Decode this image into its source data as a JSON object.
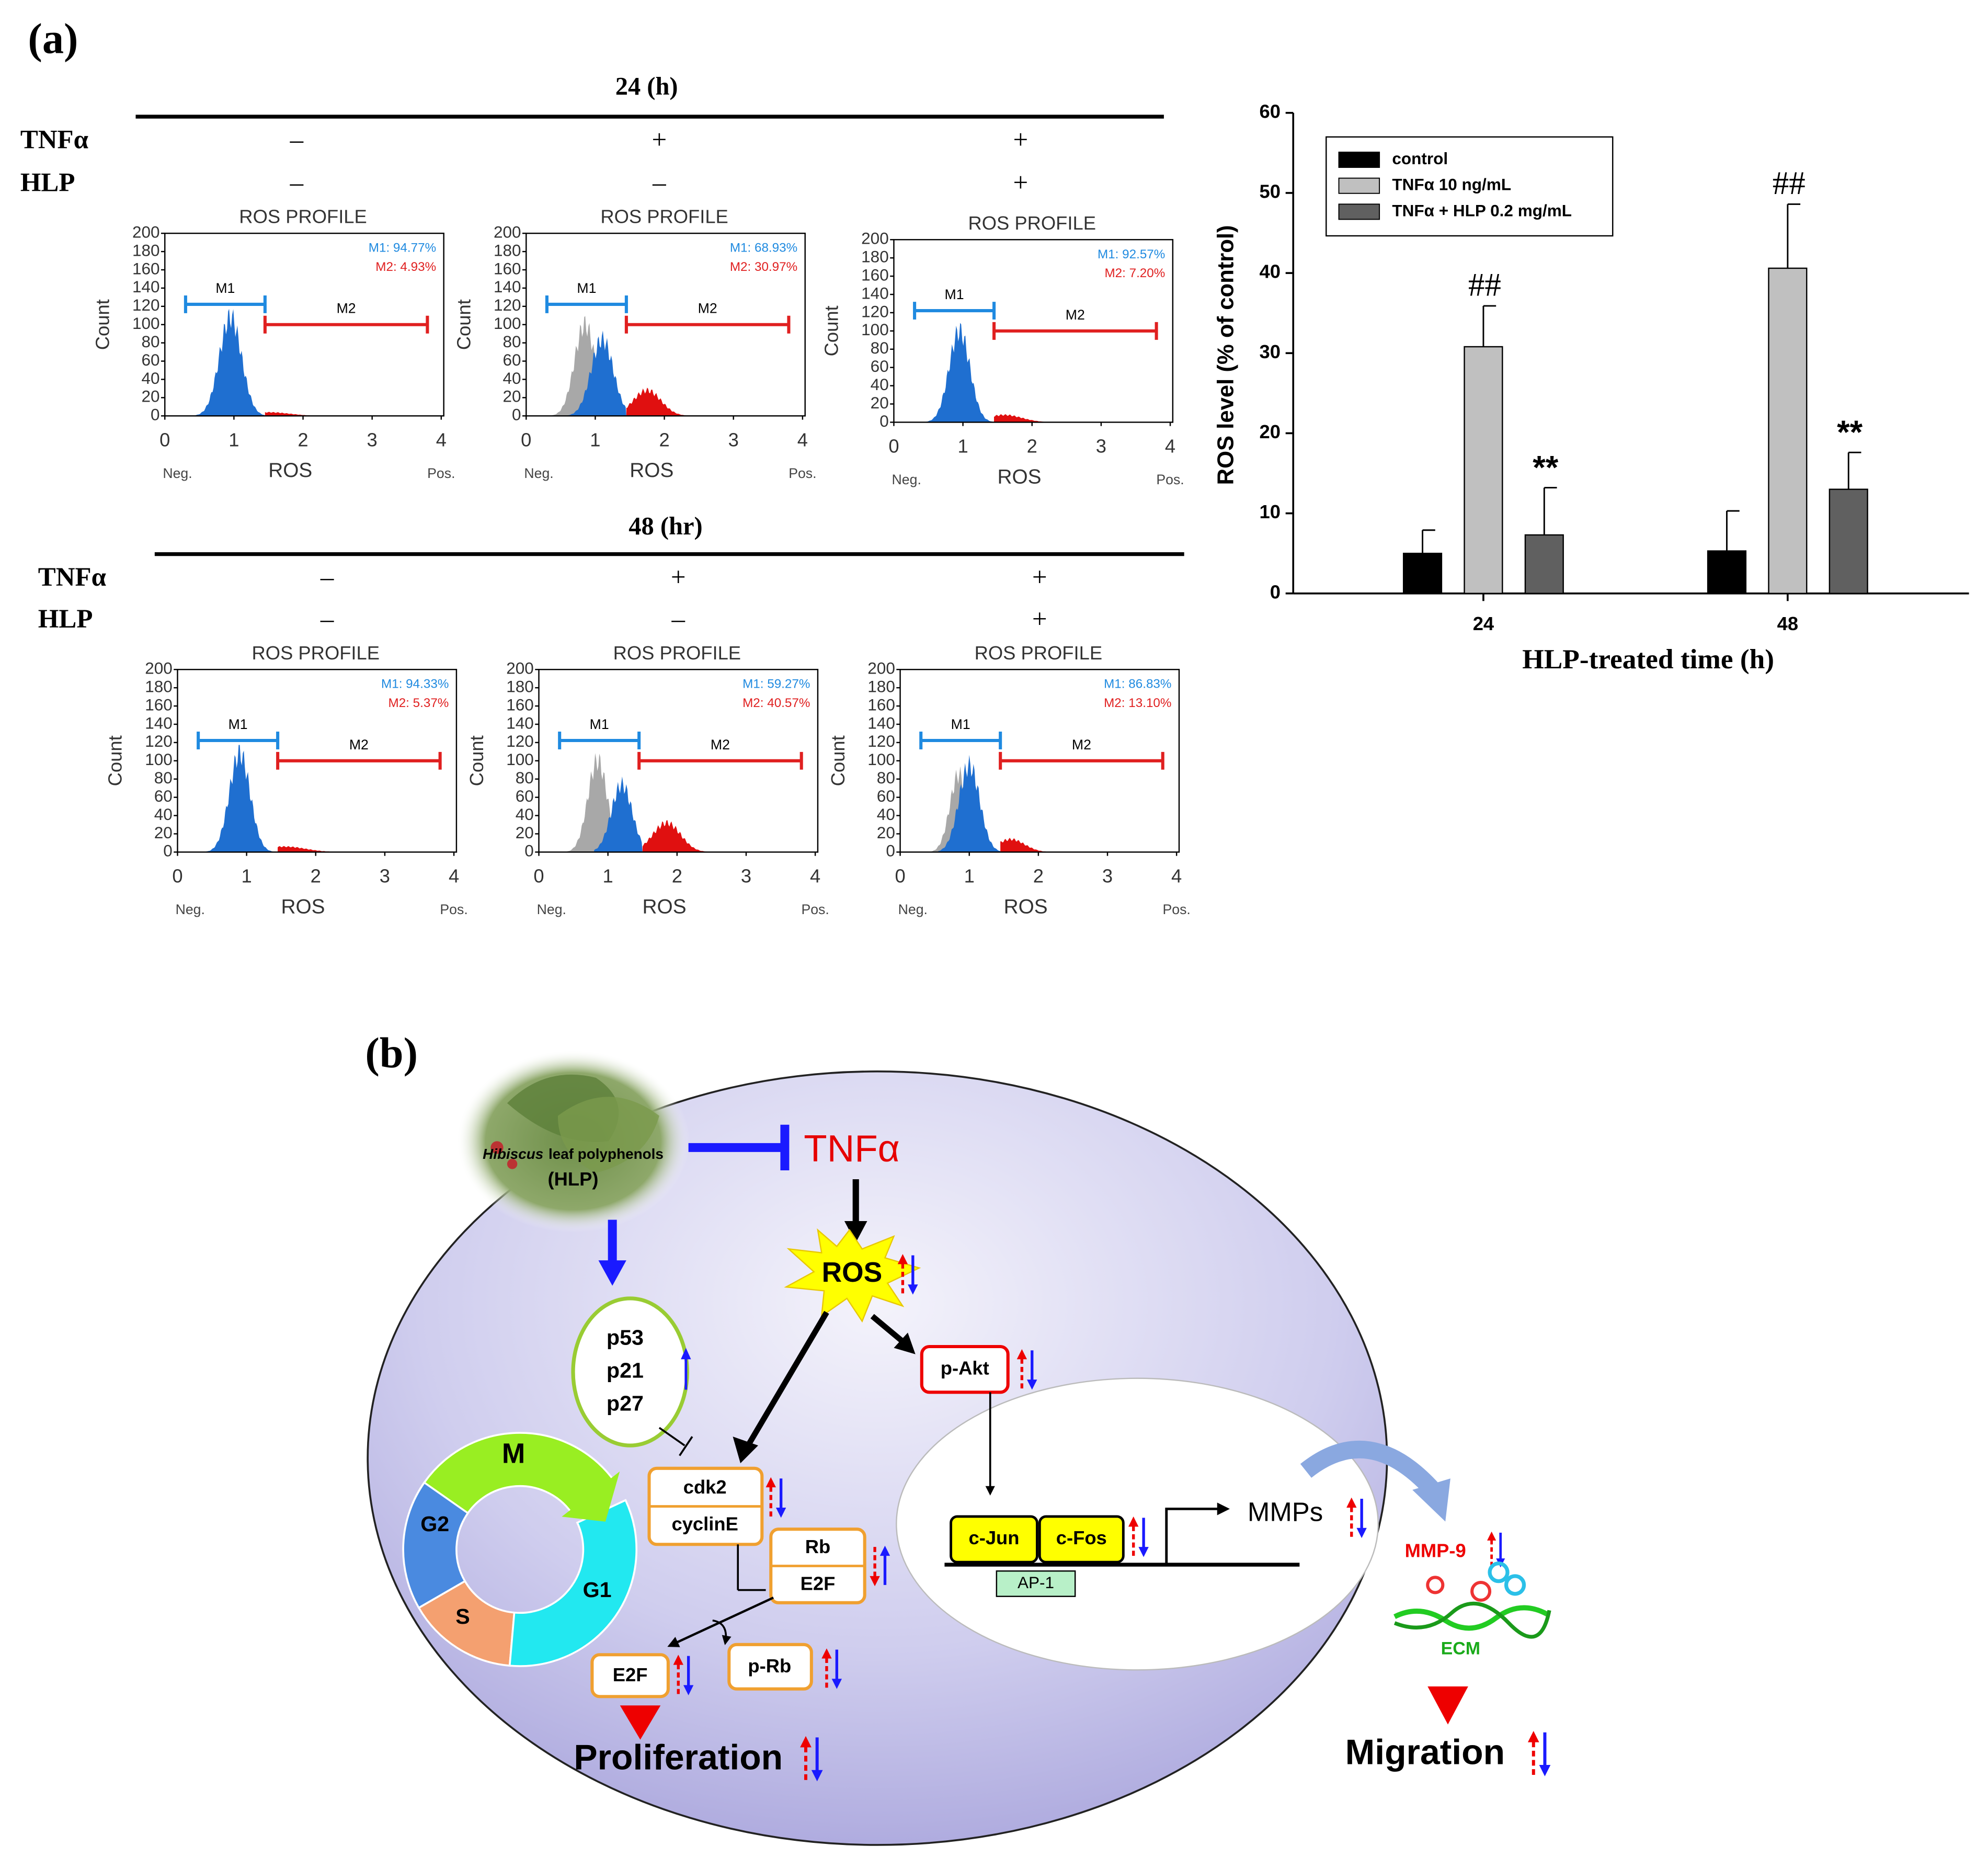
{
  "panel_a": {
    "label": "(a)",
    "groups": [
      {
        "time": "24 (h)",
        "rows": [
          {
            "label": "TNFα",
            "signs": [
              "–",
              "+",
              "+"
            ]
          },
          {
            "label": "HLP",
            "signs": [
              "–",
              "–",
              "+"
            ]
          }
        ]
      },
      {
        "time": "48 (hr)",
        "rows": [
          {
            "label": "TNFα",
            "signs": [
              "–",
              "+",
              "+"
            ]
          },
          {
            "label": "HLP",
            "signs": [
              "–",
              "–",
              "+"
            ]
          }
        ]
      }
    ],
    "hist_axes": {
      "xlim": [
        0,
        4
      ],
      "xticks": [
        0,
        1,
        2,
        3,
        4
      ],
      "ylim": [
        0,
        200
      ],
      "yticks": [
        0,
        20,
        40,
        60,
        80,
        100,
        120,
        140,
        160,
        180,
        200
      ]
    },
    "histograms": [
      {
        "title": "ROS PROFILE",
        "y_label": "Count",
        "x_label": "ROS",
        "neg": "Neg.",
        "pos": "Pos.",
        "m1": "M1",
        "m2": "M2",
        "m1_pct": "M1: 94.77%",
        "m2_pct": "M2: 4.93%"
      },
      {
        "title": "ROS PROFILE",
        "y_label": "Count",
        "x_label": "ROS",
        "neg": "Neg.",
        "pos": "Pos.",
        "m1": "M1",
        "m2": "M2",
        "m1_pct": "M1: 68.93%",
        "m2_pct": "M2: 30.97%"
      },
      {
        "title": "ROS PROFILE",
        "y_label": "Count",
        "x_label": "ROS",
        "neg": "Neg.",
        "pos": "Pos.",
        "m1": "M1",
        "m2": "M2",
        "m1_pct": "M1: 92.57%",
        "m2_pct": "M2: 7.20%"
      },
      {
        "title": "ROS PROFILE",
        "y_label": "Count",
        "x_label": "ROS",
        "neg": "Neg.",
        "pos": "Pos.",
        "m1": "M1",
        "m2": "M2",
        "m1_pct": "M1: 94.33%",
        "m2_pct": "M2: 5.37%"
      },
      {
        "title": "ROS PROFILE",
        "y_label": "Count",
        "x_label": "ROS",
        "neg": "Neg.",
        "pos": "Pos.",
        "m1": "M1",
        "m2": "M2",
        "m1_pct": "M1: 59.27%",
        "m2_pct": "M2: 40.57%"
      },
      {
        "title": "ROS PROFILE",
        "y_label": "Count",
        "x_label": "ROS",
        "neg": "Neg.",
        "pos": "Pos.",
        "m1": "M1",
        "m2": "M2",
        "m1_pct": "M1: 86.83%",
        "m2_pct": "M2: 13.10%"
      }
    ]
  },
  "chart_data": {
    "type": "bar",
    "y_label": "ROS level (% of control)",
    "x_label": "HLP-treated time (h)",
    "categories": [
      "24",
      "48"
    ],
    "series": [
      {
        "name": "control",
        "color": "#000000",
        "values": [
          5,
          5.3
        ],
        "errors": [
          2.9,
          5
        ]
      },
      {
        "name": "TNFα 10 ng/mL",
        "color": "#c0c0c0",
        "values": [
          30.8,
          40.6
        ],
        "errors": [
          5.1,
          8
        ],
        "annotations": [
          "##",
          "##"
        ]
      },
      {
        "name": "TNFα + HLP 0.2 mg/mL",
        "color": "#606060",
        "values": [
          7.3,
          13
        ],
        "errors": [
          5.9,
          4.6
        ],
        "annotations": [
          "**",
          "**"
        ]
      }
    ],
    "ylim": [
      0,
      60
    ],
    "yticks": [
      0,
      10,
      20,
      30,
      40,
      50,
      60
    ],
    "legend": "top-left"
  },
  "panel_b": {
    "label": "(b)",
    "hlp": {
      "genus": "Hibiscus",
      "rest": "leaf polyphenols",
      "abbr": "(HLP)"
    },
    "stimulus": "TNFα",
    "ros": "ROS",
    "p53_group": [
      "p53",
      "p21",
      "p27"
    ],
    "cdk": [
      "cdk2",
      "cyclinE"
    ],
    "rb": [
      "Rb",
      "E2F"
    ],
    "e2f": "E2F",
    "prb": "p-Rb",
    "akt": "p-Akt",
    "ap1": {
      "jun": "c-Jun",
      "fos": "c-Fos",
      "complex": "AP-1"
    },
    "mmps": "MMPs",
    "mmp9": "MMP-9",
    "ecm": "ECM",
    "cycle": [
      "M",
      "G2",
      "S",
      "G1"
    ],
    "outcomes": [
      "Proliferation",
      "Migration"
    ]
  }
}
